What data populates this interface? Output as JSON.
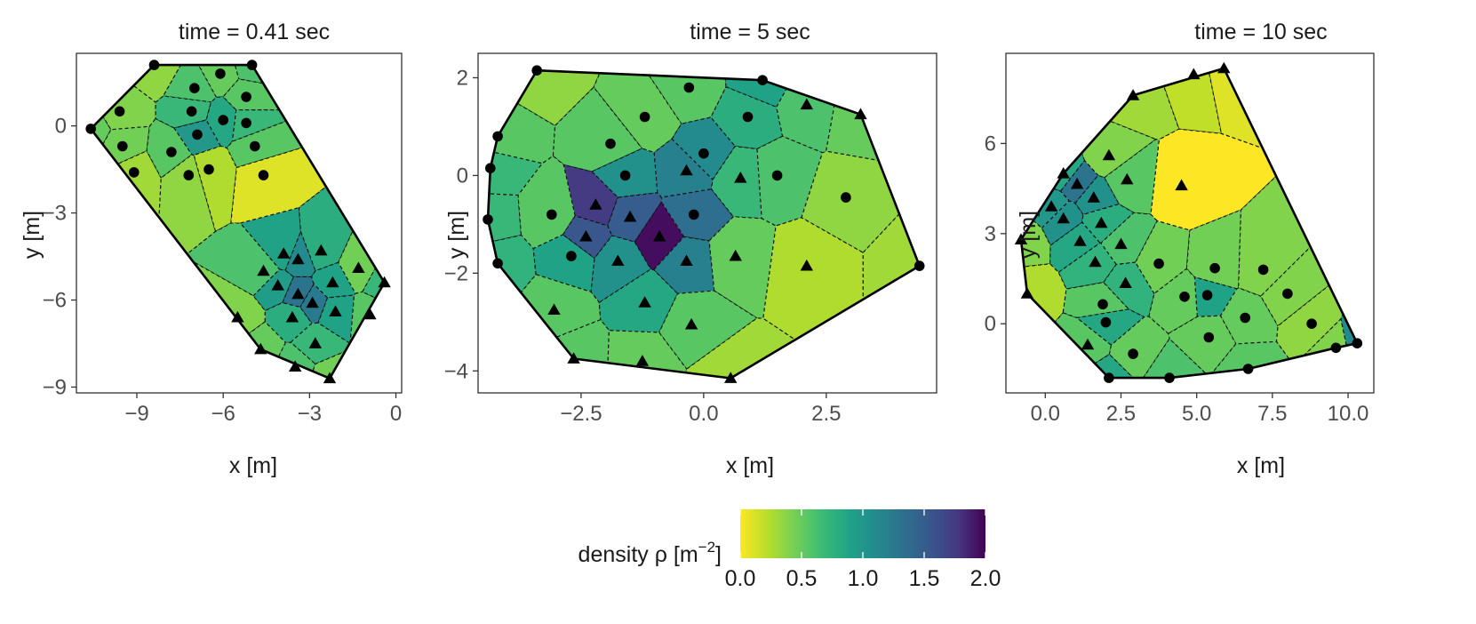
{
  "colors": {
    "viridis": [
      "#FDE725",
      "#B8DE29",
      "#73D055",
      "#3CBB75",
      "#20A387",
      "#238A8D",
      "#2D708E",
      "#39568C",
      "#453781",
      "#440154"
    ],
    "text": "#1a1a1a",
    "tick_text": "#4d4d4d",
    "frame": "#333333"
  },
  "chart_data": [
    {
      "type": "voronoi-density",
      "title": "time = 0.41 sec",
      "xlabel": "x [m]",
      "ylabel": "y [m]",
      "xlim": [
        -11.1,
        0.2
      ],
      "ylim": [
        -9.2,
        2.5
      ],
      "xticks": [
        -9,
        -6,
        -3,
        0
      ],
      "xtick_labels": [
        "−9",
        "−6",
        "−3",
        "0"
      ],
      "yticks": [
        -9,
        -6,
        -3,
        0
      ],
      "ytick_labels": [
        "−9",
        "−6",
        "−3",
        "0"
      ],
      "hull": [
        [
          -10.6,
          -0.1
        ],
        [
          -8.4,
          2.1
        ],
        [
          -5.0,
          2.1
        ],
        [
          -0.4,
          -5.4
        ],
        [
          -2.3,
          -8.7
        ],
        [
          -4.7,
          -7.7
        ]
      ],
      "points": [
        {
          "x": -8.4,
          "y": 2.1,
          "d": 0.35,
          "m": "circle"
        },
        {
          "x": -5.0,
          "y": 2.1,
          "d": 0.6,
          "m": "circle"
        },
        {
          "x": -10.6,
          "y": -0.1,
          "d": 0.5,
          "m": "circle"
        },
        {
          "x": -9.6,
          "y": 0.5,
          "d": 0.4,
          "m": "circle"
        },
        {
          "x": -9.5,
          "y": -0.7,
          "d": 0.45,
          "m": "circle"
        },
        {
          "x": -9.1,
          "y": -1.6,
          "d": 0.3,
          "m": "circle"
        },
        {
          "x": -7.8,
          "y": -0.9,
          "d": 0.55,
          "m": "circle"
        },
        {
          "x": -7.2,
          "y": -1.7,
          "d": 0.35,
          "m": "circle"
        },
        {
          "x": -7.0,
          "y": 1.3,
          "d": 0.6,
          "m": "circle"
        },
        {
          "x": -6.1,
          "y": 1.8,
          "d": 0.5,
          "m": "circle"
        },
        {
          "x": -7.1,
          "y": 0.5,
          "d": 0.7,
          "m": "circle"
        },
        {
          "x": -6.0,
          "y": 0.2,
          "d": 0.85,
          "m": "circle"
        },
        {
          "x": -6.9,
          "y": -0.3,
          "d": 1.0,
          "m": "circle"
        },
        {
          "x": -5.2,
          "y": 1.0,
          "d": 0.55,
          "m": "circle"
        },
        {
          "x": -5.2,
          "y": 0.1,
          "d": 0.7,
          "m": "circle"
        },
        {
          "x": -4.9,
          "y": -0.7,
          "d": 0.55,
          "m": "circle"
        },
        {
          "x": -6.5,
          "y": -1.5,
          "d": 0.25,
          "m": "circle"
        },
        {
          "x": -4.6,
          "y": -1.7,
          "d": 0.1,
          "m": "circle"
        },
        {
          "x": -3.9,
          "y": -4.4,
          "d": 0.9,
          "m": "triangle"
        },
        {
          "x": -3.4,
          "y": -4.6,
          "d": 1.1,
          "m": "triangle"
        },
        {
          "x": -2.6,
          "y": -4.3,
          "d": 0.8,
          "m": "triangle"
        },
        {
          "x": -4.6,
          "y": -5.0,
          "d": 0.6,
          "m": "triangle"
        },
        {
          "x": -4.1,
          "y": -5.5,
          "d": 0.95,
          "m": "triangle"
        },
        {
          "x": -3.4,
          "y": -5.8,
          "d": 1.3,
          "m": "triangle"
        },
        {
          "x": -2.9,
          "y": -6.1,
          "d": 1.25,
          "m": "triangle"
        },
        {
          "x": -2.2,
          "y": -5.4,
          "d": 0.9,
          "m": "triangle"
        },
        {
          "x": -1.3,
          "y": -4.9,
          "d": 0.45,
          "m": "triangle"
        },
        {
          "x": -3.6,
          "y": -6.6,
          "d": 0.8,
          "m": "triangle"
        },
        {
          "x": -2.1,
          "y": -6.4,
          "d": 0.9,
          "m": "triangle"
        },
        {
          "x": -5.5,
          "y": -6.6,
          "d": 0.4,
          "m": "triangle"
        },
        {
          "x": -2.8,
          "y": -7.5,
          "d": 0.7,
          "m": "triangle"
        },
        {
          "x": -0.9,
          "y": -6.5,
          "d": 0.55,
          "m": "triangle"
        },
        {
          "x": -0.4,
          "y": -5.4,
          "d": 0.7,
          "m": "triangle"
        },
        {
          "x": -4.7,
          "y": -7.7,
          "d": 0.5,
          "m": "triangle"
        },
        {
          "x": -3.5,
          "y": -8.3,
          "d": 0.6,
          "m": "triangle"
        },
        {
          "x": -2.3,
          "y": -8.7,
          "d": 0.45,
          "m": "triangle"
        }
      ]
    },
    {
      "type": "voronoi-density",
      "title": "time = 5 sec",
      "xlabel": "x [m]",
      "ylabel": "y [m]",
      "xlim": [
        -4.6,
        4.75
      ],
      "ylim": [
        -4.45,
        2.5
      ],
      "xticks": [
        -2.5,
        0.0,
        2.5
      ],
      "xtick_labels": [
        "−2.5",
        "0.0",
        "2.5"
      ],
      "yticks": [
        -4,
        -2,
        0,
        2
      ],
      "ytick_labels": [
        "−4",
        "−2",
        "0",
        "2"
      ],
      "hull": [
        [
          -3.4,
          2.15
        ],
        [
          1.2,
          1.95
        ],
        [
          3.2,
          1.25
        ],
        [
          4.4,
          -1.85
        ],
        [
          0.55,
          -4.15
        ],
        [
          -2.65,
          -3.75
        ],
        [
          -4.2,
          -1.8
        ],
        [
          -4.4,
          -0.9
        ],
        [
          -4.35,
          0.15
        ],
        [
          -4.2,
          0.8
        ]
      ],
      "points": [
        {
          "x": -3.4,
          "y": 2.15,
          "d": 0.35,
          "m": "circle"
        },
        {
          "x": 1.2,
          "y": 1.95,
          "d": 0.9,
          "m": "circle"
        },
        {
          "x": -0.3,
          "y": 1.8,
          "d": 0.55,
          "m": "circle"
        },
        {
          "x": -1.2,
          "y": 1.2,
          "d": 0.5,
          "m": "circle"
        },
        {
          "x": 0.9,
          "y": 1.2,
          "d": 0.8,
          "m": "circle"
        },
        {
          "x": -4.2,
          "y": 0.8,
          "d": 0.55,
          "m": "circle"
        },
        {
          "x": -4.35,
          "y": 0.15,
          "d": 0.7,
          "m": "circle"
        },
        {
          "x": -1.9,
          "y": 0.65,
          "d": 0.55,
          "m": "circle"
        },
        {
          "x": -1.6,
          "y": 0.0,
          "d": 1.05,
          "m": "circle"
        },
        {
          "x": 0.0,
          "y": 0.45,
          "d": 1.1,
          "m": "circle"
        },
        {
          "x": 1.5,
          "y": 0.0,
          "d": 0.6,
          "m": "circle"
        },
        {
          "x": 2.9,
          "y": -0.45,
          "d": 0.35,
          "m": "circle"
        },
        {
          "x": -4.4,
          "y": -0.9,
          "d": 0.7,
          "m": "circle"
        },
        {
          "x": -3.1,
          "y": -0.8,
          "d": 0.55,
          "m": "circle"
        },
        {
          "x": -0.2,
          "y": -0.8,
          "d": 1.35,
          "m": "circle"
        },
        {
          "x": -4.2,
          "y": -1.8,
          "d": 0.75,
          "m": "circle"
        },
        {
          "x": -2.7,
          "y": -1.65,
          "d": 0.9,
          "m": "circle"
        },
        {
          "x": 4.4,
          "y": -1.85,
          "d": 0.3,
          "m": "circle"
        },
        {
          "x": -0.35,
          "y": 0.1,
          "d": 1.2,
          "m": "triangle"
        },
        {
          "x": 0.75,
          "y": -0.05,
          "d": 0.7,
          "m": "triangle"
        },
        {
          "x": 2.1,
          "y": 1.45,
          "d": 0.6,
          "m": "triangle"
        },
        {
          "x": 3.2,
          "y": 1.25,
          "d": 0.5,
          "m": "triangle"
        },
        {
          "x": -2.2,
          "y": -0.6,
          "d": 1.75,
          "m": "triangle"
        },
        {
          "x": -1.5,
          "y": -0.85,
          "d": 1.5,
          "m": "triangle"
        },
        {
          "x": -2.4,
          "y": -1.25,
          "d": 1.55,
          "m": "triangle"
        },
        {
          "x": -0.9,
          "y": -1.25,
          "d": 1.95,
          "m": "triangle"
        },
        {
          "x": -1.75,
          "y": -1.75,
          "d": 1.05,
          "m": "triangle"
        },
        {
          "x": -0.35,
          "y": -1.75,
          "d": 1.2,
          "m": "triangle"
        },
        {
          "x": 0.65,
          "y": -1.65,
          "d": 0.5,
          "m": "triangle"
        },
        {
          "x": 2.1,
          "y": -1.85,
          "d": 0.25,
          "m": "triangle"
        },
        {
          "x": -3.05,
          "y": -2.75,
          "d": 0.55,
          "m": "triangle"
        },
        {
          "x": -1.2,
          "y": -2.6,
          "d": 0.85,
          "m": "triangle"
        },
        {
          "x": -0.25,
          "y": -3.05,
          "d": 0.55,
          "m": "triangle"
        },
        {
          "x": -2.65,
          "y": -3.75,
          "d": 0.55,
          "m": "triangle"
        },
        {
          "x": -1.25,
          "y": -3.8,
          "d": 0.5,
          "m": "triangle"
        },
        {
          "x": 0.55,
          "y": -4.15,
          "d": 0.3,
          "m": "triangle"
        }
      ]
    },
    {
      "type": "voronoi-density",
      "title": "time = 10 sec",
      "xlabel": "x [m]",
      "ylabel": "y [m]",
      "xlim": [
        -1.3,
        10.85
      ],
      "ylim": [
        -2.3,
        9.0
      ],
      "xticks": [
        0.0,
        2.5,
        5.0,
        7.5,
        10.0
      ],
      "xtick_labels": [
        "0.0",
        "2.5",
        "5.0",
        "7.5",
        "10.0"
      ],
      "yticks": [
        0,
        3,
        6
      ],
      "ytick_labels": [
        "0",
        "3",
        "6"
      ],
      "hull": [
        [
          5.9,
          8.5
        ],
        [
          10.3,
          -0.65
        ],
        [
          9.6,
          -0.8
        ],
        [
          6.7,
          -1.5
        ],
        [
          4.1,
          -1.8
        ],
        [
          2.1,
          -1.8
        ],
        [
          -0.6,
          1.0
        ],
        [
          -0.8,
          2.8
        ],
        [
          0.6,
          5.0
        ],
        [
          2.9,
          7.6
        ]
      ],
      "points": [
        {
          "x": 5.9,
          "y": 8.5,
          "d": 0.1,
          "m": "triangle"
        },
        {
          "x": 4.9,
          "y": 8.3,
          "d": 0.2,
          "m": "triangle"
        },
        {
          "x": 2.9,
          "y": 7.6,
          "d": 0.3,
          "m": "triangle"
        },
        {
          "x": 2.1,
          "y": 5.6,
          "d": 0.4,
          "m": "triangle"
        },
        {
          "x": 4.5,
          "y": 4.6,
          "d": 0.0,
          "m": "triangle"
        },
        {
          "x": 2.7,
          "y": 4.8,
          "d": 0.55,
          "m": "triangle"
        },
        {
          "x": 0.6,
          "y": 5.0,
          "d": 0.85,
          "m": "triangle"
        },
        {
          "x": 1.05,
          "y": 4.65,
          "d": 1.3,
          "m": "triangle"
        },
        {
          "x": 0.2,
          "y": 3.9,
          "d": 1.0,
          "m": "triangle"
        },
        {
          "x": 1.6,
          "y": 4.2,
          "d": 1.05,
          "m": "triangle"
        },
        {
          "x": 0.6,
          "y": 3.5,
          "d": 1.05,
          "m": "triangle"
        },
        {
          "x": 1.85,
          "y": 3.35,
          "d": 0.8,
          "m": "triangle"
        },
        {
          "x": -0.8,
          "y": 2.8,
          "d": 0.4,
          "m": "triangle"
        },
        {
          "x": 1.15,
          "y": 2.75,
          "d": 0.85,
          "m": "triangle"
        },
        {
          "x": 2.5,
          "y": 2.65,
          "d": 0.6,
          "m": "triangle"
        },
        {
          "x": 1.65,
          "y": 2.05,
          "d": 0.75,
          "m": "triangle"
        },
        {
          "x": 2.65,
          "y": 1.35,
          "d": 0.75,
          "m": "triangle"
        },
        {
          "x": -0.6,
          "y": 1.0,
          "d": 0.25,
          "m": "triangle"
        },
        {
          "x": 1.4,
          "y": -0.7,
          "d": 0.55,
          "m": "triangle"
        },
        {
          "x": 3.75,
          "y": 2.0,
          "d": 0.45,
          "m": "circle"
        },
        {
          "x": 5.6,
          "y": 1.85,
          "d": 0.45,
          "m": "circle"
        },
        {
          "x": 7.2,
          "y": 1.8,
          "d": 0.4,
          "m": "circle"
        },
        {
          "x": 1.9,
          "y": 0.65,
          "d": 0.55,
          "m": "circle"
        },
        {
          "x": 2.0,
          "y": 0.05,
          "d": 0.85,
          "m": "circle"
        },
        {
          "x": 4.6,
          "y": 0.9,
          "d": 0.5,
          "m": "circle"
        },
        {
          "x": 5.35,
          "y": 0.95,
          "d": 0.9,
          "m": "circle"
        },
        {
          "x": 6.6,
          "y": 0.2,
          "d": 0.5,
          "m": "circle"
        },
        {
          "x": 8.0,
          "y": 1.0,
          "d": 0.4,
          "m": "circle"
        },
        {
          "x": 8.8,
          "y": 0.0,
          "d": 0.35,
          "m": "circle"
        },
        {
          "x": 5.4,
          "y": -0.45,
          "d": 0.5,
          "m": "circle"
        },
        {
          "x": 2.9,
          "y": -1.0,
          "d": 0.5,
          "m": "circle"
        },
        {
          "x": 4.1,
          "y": -1.8,
          "d": 0.6,
          "m": "circle"
        },
        {
          "x": 2.1,
          "y": -1.8,
          "d": 0.85,
          "m": "circle"
        },
        {
          "x": 6.7,
          "y": -1.5,
          "d": 0.55,
          "m": "circle"
        },
        {
          "x": 9.6,
          "y": -0.8,
          "d": 0.4,
          "m": "circle"
        },
        {
          "x": 10.3,
          "y": -0.65,
          "d": 1.1,
          "m": "circle"
        }
      ]
    }
  ],
  "colorbar": {
    "title": "density ρ [m",
    "title_superscript": "−2",
    "title_close": "]",
    "min": 0.0,
    "max": 2.0,
    "ticks": [
      0.0,
      0.5,
      1.0,
      1.5,
      2.0
    ],
    "tick_labels": [
      "0.0",
      "0.5",
      "1.0",
      "1.5",
      "2.0"
    ]
  }
}
